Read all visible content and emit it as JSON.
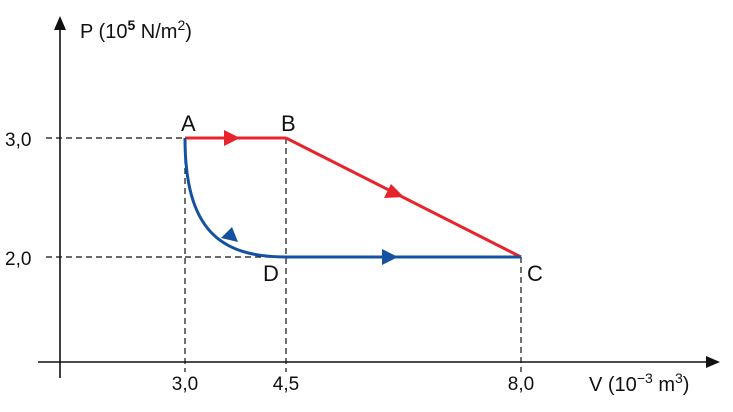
{
  "chart_data": {
    "type": "line",
    "y_axis": {
      "label": "P (10",
      "exp": "5",
      "unit": " N/m",
      "unit_exp": "2",
      "label_end": ")"
    },
    "x_axis": {
      "label": "V (10",
      "exp": "−3",
      "unit": " m",
      "unit_exp": "3",
      "label_end": ")"
    },
    "y_ticks": [
      "3,0",
      "2,0"
    ],
    "x_ticks": [
      "3,0",
      "4,5",
      "8,0"
    ],
    "points": {
      "A": {
        "name": "A",
        "V": 3.0,
        "P": 3.0
      },
      "B": {
        "name": "B",
        "V": 4.5,
        "P": 3.0
      },
      "C": {
        "name": "C",
        "V": 8.0,
        "P": 2.0
      },
      "D": {
        "name": "D",
        "V": 4.5,
        "P": 2.0
      }
    },
    "paths": [
      {
        "from": "A",
        "to": "B",
        "shape": "straight",
        "color": "#e8242b"
      },
      {
        "from": "B",
        "to": "C",
        "shape": "straight",
        "color": "#e8242b"
      },
      {
        "from": "A",
        "to": "D",
        "shape": "curve",
        "color": "#1451a2"
      },
      {
        "from": "D",
        "to": "C",
        "shape": "straight",
        "color": "#1451a2"
      }
    ],
    "grid": false,
    "guide_lines": "dashed"
  }
}
